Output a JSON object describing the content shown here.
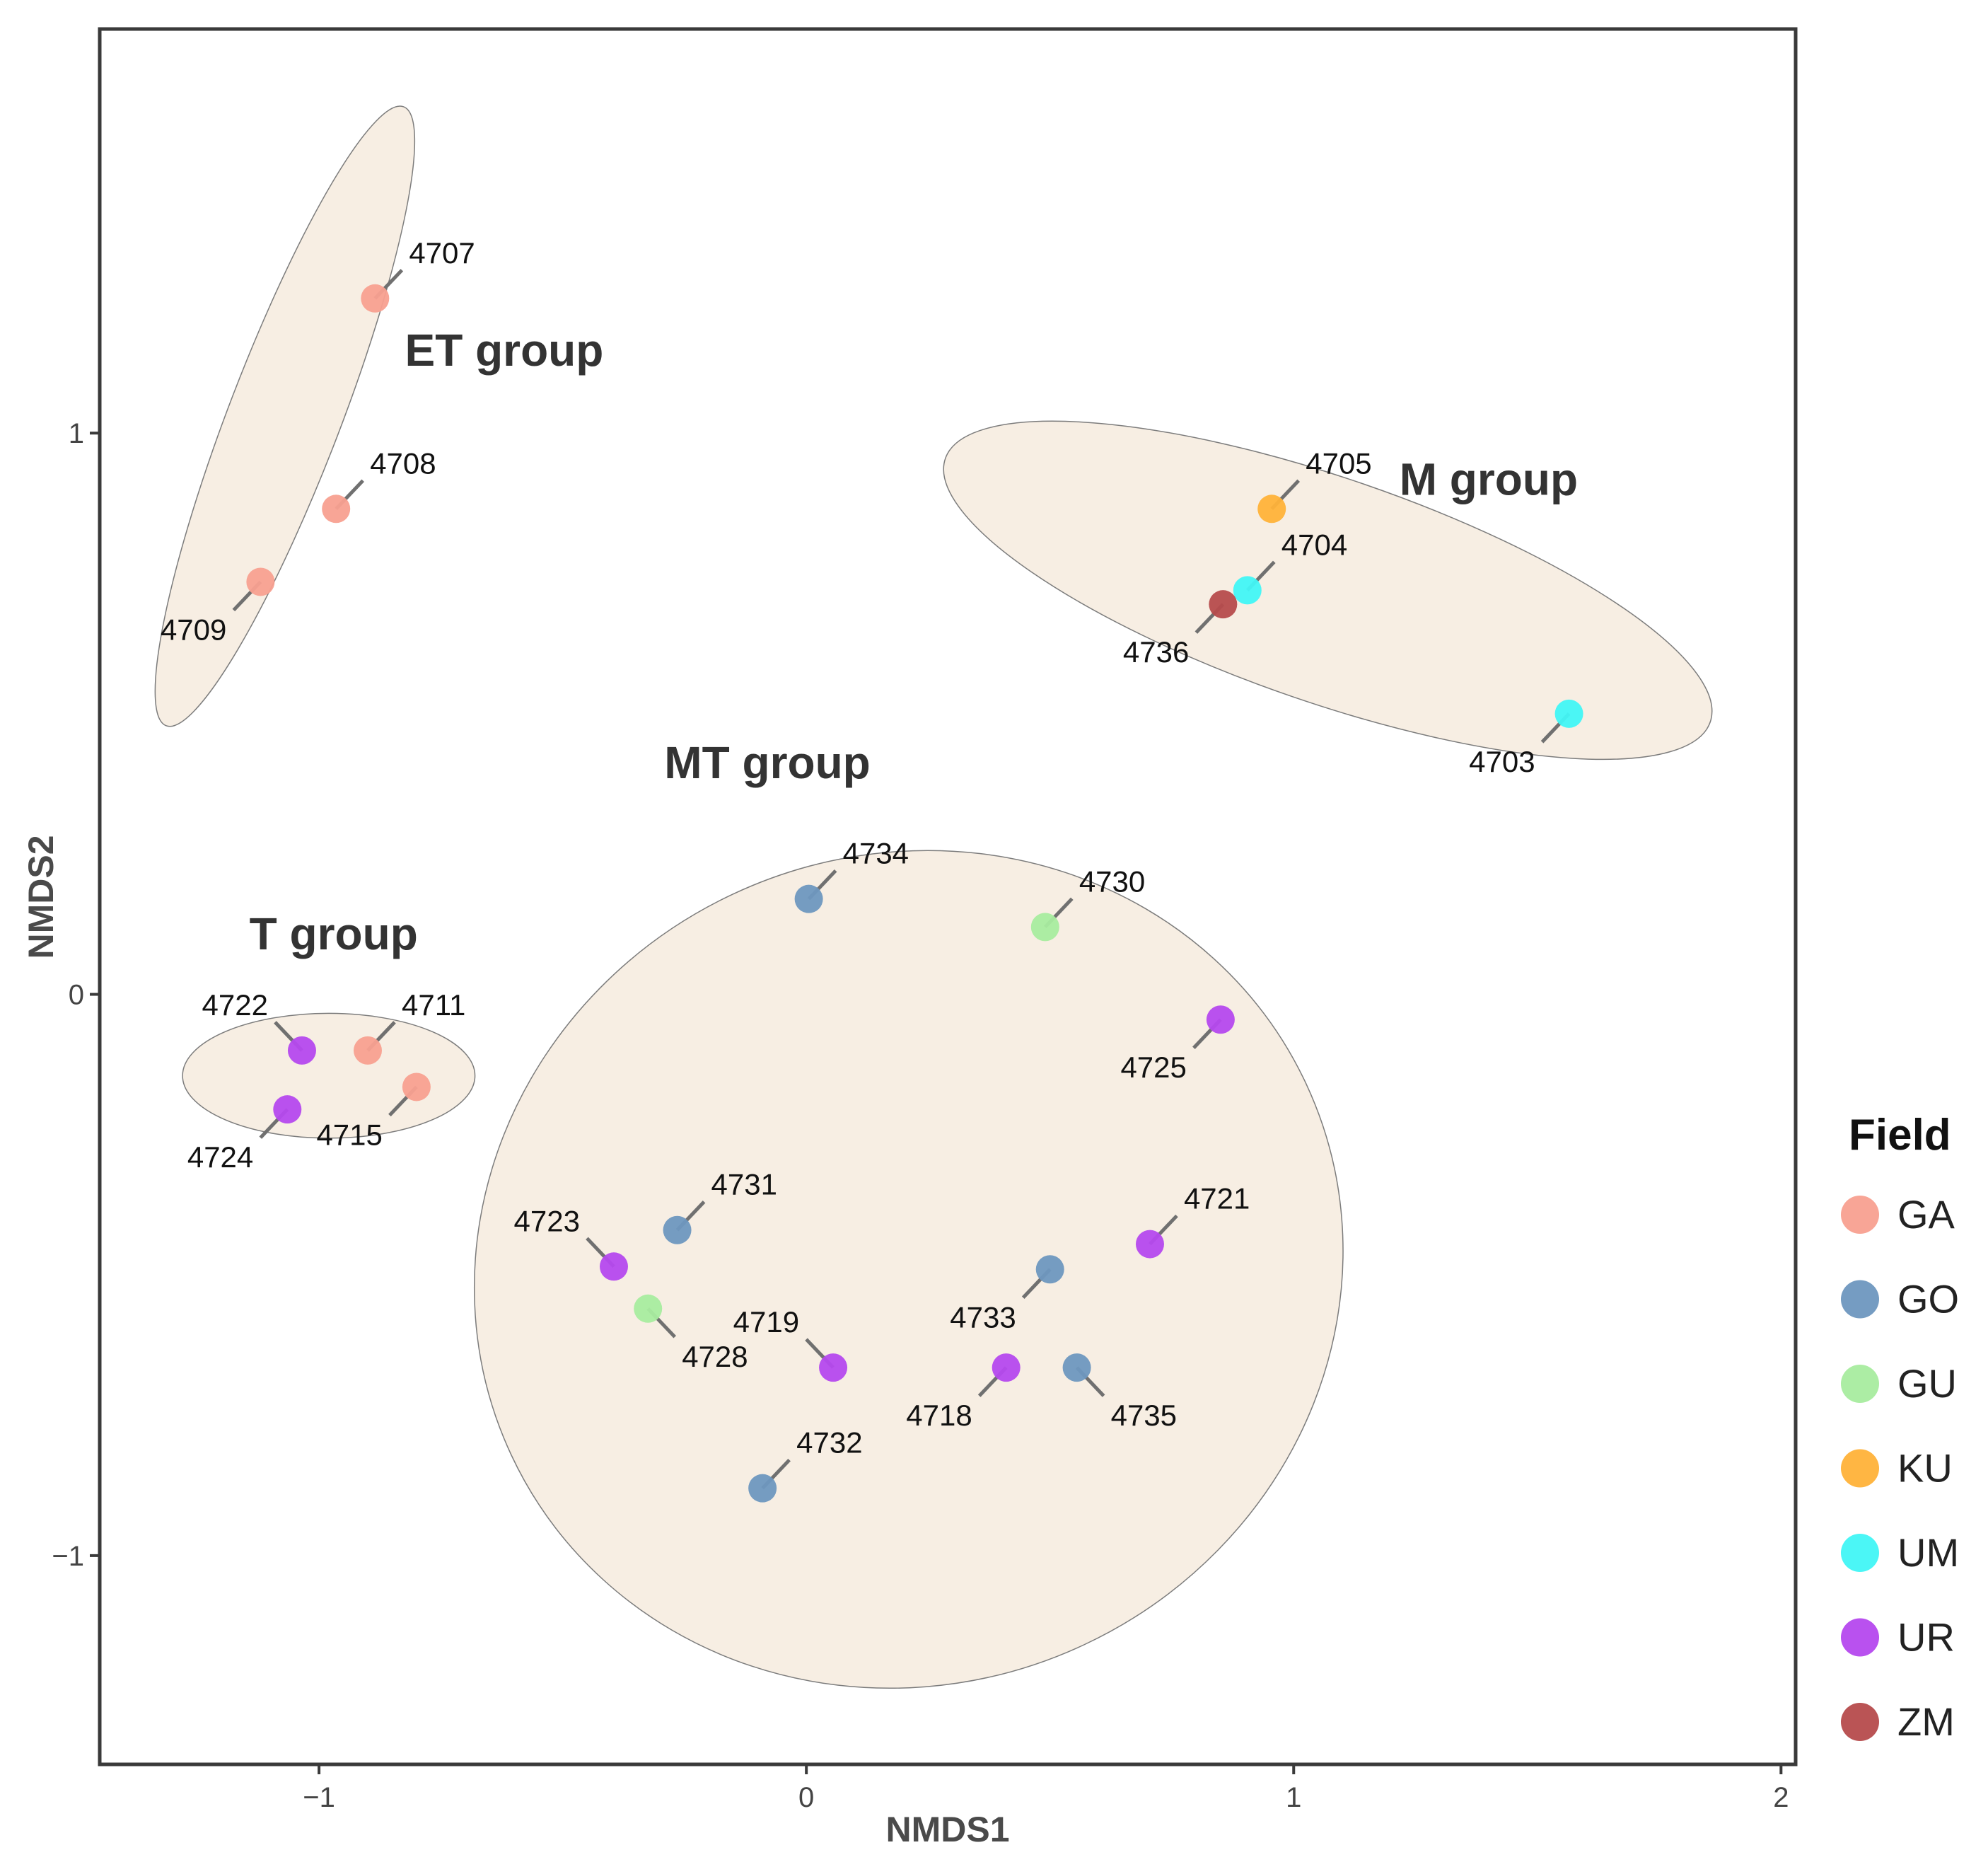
{
  "chart_data": {
    "type": "scatter",
    "xlabel": "NMDS1",
    "ylabel": "NMDS2",
    "xlim": [
      -1.45,
      2.03
    ],
    "ylim": [
      -1.372,
      1.72
    ],
    "x_ticks": [
      {
        "value": -1,
        "label": "−1"
      },
      {
        "value": 0,
        "label": "0"
      },
      {
        "value": 1,
        "label": "1"
      },
      {
        "value": 2,
        "label": "2"
      }
    ],
    "y_ticks": [
      {
        "value": -1,
        "label": "−1"
      },
      {
        "value": 0,
        "label": "0"
      },
      {
        "value": 1,
        "label": "1"
      }
    ],
    "grid": false,
    "legend": {
      "title": "Field",
      "placement": "right",
      "items": [
        {
          "label": "GA",
          "color": "#F8A090"
        },
        {
          "label": "GO",
          "color": "#6E97BF"
        },
        {
          "label": "GU",
          "color": "#A8EC9F"
        },
        {
          "label": "KU",
          "color": "#FFB239"
        },
        {
          "label": "UM",
          "color": "#41F5F5"
        },
        {
          "label": "UR",
          "color": "#B548EE"
        },
        {
          "label": "ZM",
          "color": "#B64B4C"
        }
      ]
    },
    "groups": [
      {
        "label": "ET group",
        "cx": -1.07,
        "cy": 1.03,
        "rx": 0.68,
        "ry": 0.115,
        "angle_deg": -69,
        "label_x": -0.62,
        "label_y": 1.12
      },
      {
        "label": "M group",
        "cx": 1.07,
        "cy": 0.72,
        "rx": 0.83,
        "ry": 0.23,
        "angle_deg": 19,
        "label_x": 1.4,
        "label_y": 0.89
      },
      {
        "label": "T group",
        "cx": -0.98,
        "cy": -0.145,
        "rx": 0.3,
        "ry": 0.128,
        "angle_deg": 0,
        "label_x": -0.97,
        "label_y": 0.08
      },
      {
        "label": "MT group",
        "cx": 0.21,
        "cy": -0.49,
        "rx": 0.9,
        "ry": 0.85,
        "angle_deg": -25,
        "label_x": -0.08,
        "label_y": 0.385
      }
    ],
    "points": [
      {
        "id": "4707",
        "field": "GA",
        "x": -0.885,
        "y": 1.24
      },
      {
        "id": "4708",
        "field": "GA",
        "x": -0.965,
        "y": 0.865
      },
      {
        "id": "4709",
        "field": "GA",
        "x": -1.12,
        "y": 0.735
      },
      {
        "id": "4705",
        "field": "KU",
        "x": 0.955,
        "y": 0.865
      },
      {
        "id": "4704",
        "field": "UM",
        "x": 0.905,
        "y": 0.72
      },
      {
        "id": "4736",
        "field": "ZM",
        "x": 0.855,
        "y": 0.695
      },
      {
        "id": "4703",
        "field": "UM",
        "x": 1.565,
        "y": 0.5
      },
      {
        "id": "4734",
        "field": "GO",
        "x": 0.005,
        "y": 0.17
      },
      {
        "id": "4730",
        "field": "GU",
        "x": 0.49,
        "y": 0.12
      },
      {
        "id": "4725",
        "field": "UR",
        "x": 0.85,
        "y": -0.045
      },
      {
        "id": "4722",
        "field": "UR",
        "x": -1.035,
        "y": -0.1
      },
      {
        "id": "4711",
        "field": "GA",
        "x": -0.9,
        "y": -0.1
      },
      {
        "id": "4715",
        "field": "GA",
        "x": -0.8,
        "y": -0.165
      },
      {
        "id": "4724",
        "field": "UR",
        "x": -1.065,
        "y": -0.205
      },
      {
        "id": "4731",
        "field": "GO",
        "x": -0.265,
        "y": -0.42
      },
      {
        "id": "4723",
        "field": "UR",
        "x": -0.395,
        "y": -0.485
      },
      {
        "id": "4728",
        "field": "GU",
        "x": -0.325,
        "y": -0.56
      },
      {
        "id": "4719",
        "field": "UR",
        "x": 0.055,
        "y": -0.665
      },
      {
        "id": "4721",
        "field": "UR",
        "x": 0.705,
        "y": -0.445
      },
      {
        "id": "4733",
        "field": "GO",
        "x": 0.5,
        "y": -0.49
      },
      {
        "id": "4718",
        "field": "UR",
        "x": 0.41,
        "y": -0.665
      },
      {
        "id": "4735",
        "field": "GO",
        "x": 0.555,
        "y": -0.665
      },
      {
        "id": "4732",
        "field": "GO",
        "x": -0.09,
        "y": -0.88
      }
    ]
  }
}
